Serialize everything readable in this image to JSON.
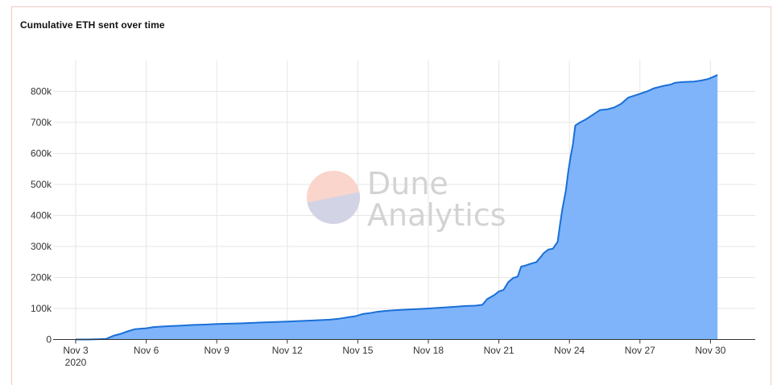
{
  "chart_title": "Cumulative ETH sent over time",
  "watermark": {
    "line1": "Dune",
    "line2": "Analytics"
  },
  "colors": {
    "fill": "#7fb4fb",
    "stroke": "#1a6fd6",
    "grid": "#e6e6e6",
    "axis": "#333333"
  },
  "chart_data": {
    "type": "area",
    "title": "Cumulative ETH sent over time",
    "xlabel": "",
    "ylabel": "",
    "ylim": [
      0,
      900000
    ],
    "grid": true,
    "y_ticks": [
      0,
      100000,
      200000,
      300000,
      400000,
      500000,
      600000,
      700000,
      800000
    ],
    "y_tick_labels": [
      "0",
      "100k",
      "200k",
      "300k",
      "400k",
      "500k",
      "600k",
      "700k",
      "800k"
    ],
    "x_ticks": [
      {
        "day": 3,
        "label": "Nov 3",
        "sublabel": "2020"
      },
      {
        "day": 6,
        "label": "Nov 6"
      },
      {
        "day": 9,
        "label": "Nov 9"
      },
      {
        "day": 12,
        "label": "Nov 12"
      },
      {
        "day": 15,
        "label": "Nov 15"
      },
      {
        "day": 18,
        "label": "Nov 18"
      },
      {
        "day": 21,
        "label": "Nov 21"
      },
      {
        "day": 24,
        "label": "Nov 24"
      },
      {
        "day": 27,
        "label": "Nov 27"
      },
      {
        "day": 30,
        "label": "Nov 30"
      }
    ],
    "series": [
      {
        "x": [
          3.0,
          3.5,
          4.0,
          4.3,
          4.6,
          4.9,
          5.2,
          5.5,
          5.8,
          6.0,
          6.3,
          6.5,
          7.0,
          7.5,
          8.0,
          8.5,
          9.0,
          10.0,
          11.0,
          12.0,
          13.0,
          13.8,
          14.2,
          14.6,
          14.9,
          15.2,
          15.5,
          15.8,
          16.0,
          16.5,
          17.0,
          18.0,
          19.0,
          19.6,
          20.0,
          20.3,
          20.5,
          20.8,
          21.0,
          21.2,
          21.4,
          21.6,
          21.8,
          21.95,
          22.1,
          22.3,
          22.6,
          22.8,
          22.9,
          23.1,
          23.3,
          23.5,
          23.6,
          23.7,
          23.85,
          23.95,
          24.05,
          24.15,
          24.25,
          24.35,
          24.45,
          24.7,
          25.0,
          25.3,
          25.6,
          25.9,
          26.2,
          26.5,
          26.9,
          27.1,
          27.3,
          27.6,
          28.0,
          28.3,
          28.5,
          28.8,
          29.3,
          29.6,
          29.9,
          30.0,
          30.3
        ],
        "y": [
          0,
          0,
          1000,
          2000,
          12000,
          18000,
          26000,
          33000,
          35000,
          36000,
          40000,
          41000,
          43000,
          45000,
          47000,
          48000,
          50000,
          52000,
          55000,
          58000,
          61000,
          64000,
          67000,
          72000,
          75000,
          82000,
          85000,
          89000,
          91000,
          94000,
          96000,
          100000,
          105000,
          108000,
          109000,
          112000,
          130000,
          143000,
          155000,
          160000,
          185000,
          198000,
          203000,
          235000,
          238000,
          243000,
          250000,
          268000,
          278000,
          290000,
          293000,
          315000,
          370000,
          420000,
          480000,
          540000,
          590000,
          630000,
          690000,
          695000,
          700000,
          710000,
          725000,
          740000,
          742000,
          748000,
          760000,
          780000,
          790000,
          795000,
          800000,
          810000,
          818000,
          822000,
          828000,
          830000,
          832000,
          835000,
          840000,
          843000,
          853000
        ]
      }
    ]
  }
}
